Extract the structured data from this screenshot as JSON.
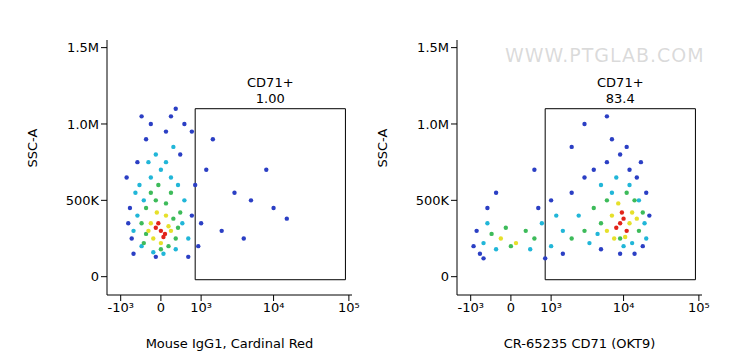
{
  "watermark": "WWW.PTGLAB.COM",
  "chart_data": [
    {
      "type": "scatter",
      "x_label": "Mouse IgG1, Cardinal Red",
      "y_label": "SSC-A",
      "xlim": [
        -1600,
        110000
      ],
      "ylim": [
        -120000,
        1550000
      ],
      "xticks": [
        {
          "value": -1000,
          "label": "-10³"
        },
        0,
        {
          "value": 1000,
          "label": "10³"
        },
        {
          "value": 10000,
          "label": "10⁴"
        },
        {
          "value": 100000,
          "label": "10⁵"
        }
      ],
      "yticks": [
        0,
        {
          "value": 500000,
          "label": "500K"
        },
        {
          "value": 1000000,
          "label": "1.0M"
        },
        {
          "value": 1500000,
          "label": "1.5M"
        }
      ],
      "gate": {
        "label": "CD71+",
        "percent": 1.0,
        "percent_label": "1.00",
        "x": [
          800,
          90000
        ],
        "y": [
          -20000,
          1100000
        ]
      },
      "series": [
        {
          "color": "#2b3fc4",
          "x": [
            -700,
            -650,
            700,
            800,
            -500,
            -300,
            100,
            400,
            1200,
            2000,
            3000,
            5000,
            1500,
            -200,
            300,
            -600,
            600,
            900,
            -800,
            4000,
            10000,
            15000,
            -400,
            700,
            200,
            8000,
            -100,
            1000,
            -750,
            500
          ],
          "values": [
            450000,
            250000,
            400000,
            600000,
            750000,
            900000,
            950000,
            800000,
            700000,
            300000,
            550000,
            500000,
            900000,
            1000000,
            1100000,
            150000,
            130000,
            200000,
            650000,
            250000,
            450000,
            380000,
            1050000,
            950000,
            1050000,
            700000,
            130000,
            350000,
            350000,
            1000000
          ]
        },
        {
          "color": "#21b6d8",
          "x": [
            -450,
            -200,
            0,
            200,
            -500,
            450,
            -400,
            300,
            -150,
            100,
            -350,
            500,
            -600,
            -250,
            50,
            350,
            -100,
            250,
            -550,
            600
          ],
          "values": [
            600000,
            650000,
            700000,
            650000,
            400000,
            350000,
            200000,
            180000,
            160000,
            750000,
            500000,
            500000,
            300000,
            750000,
            150000,
            600000,
            800000,
            850000,
            550000,
            250000
          ]
        },
        {
          "color": "#3dbb5a",
          "x": [
            -300,
            250,
            -350,
            300,
            -100,
            100,
            0,
            -400,
            350,
            -200,
            150,
            -50,
            200,
            -300,
            400
          ],
          "values": [
            450000,
            380000,
            220000,
            250000,
            500000,
            480000,
            180000,
            350000,
            320000,
            550000,
            200000,
            600000,
            550000,
            280000,
            420000
          ]
        },
        {
          "color": "#e6e02a",
          "x": [
            -200,
            150,
            -150,
            100,
            0,
            -250,
            200,
            -80
          ],
          "values": [
            350000,
            330000,
            250000,
            400000,
            220000,
            300000,
            300000,
            420000
          ]
        },
        {
          "color": "#e2231a",
          "x": [
            0,
            -100,
            80,
            -50,
            50
          ],
          "values": [
            300000,
            320000,
            280000,
            350000,
            260000
          ]
        }
      ]
    },
    {
      "type": "scatter",
      "x_label": "CR-65235 CD71 (OKT9)",
      "y_label": "SSC-A",
      "xlim": [
        -1600,
        110000
      ],
      "ylim": [
        -120000,
        1550000
      ],
      "xticks": [
        {
          "value": -1000,
          "label": "-10³"
        },
        0,
        {
          "value": 1000,
          "label": "10³"
        },
        {
          "value": 10000,
          "label": "10⁴"
        },
        {
          "value": 100000,
          "label": "10⁵"
        }
      ],
      "yticks": [
        0,
        {
          "value": 500000,
          "label": "500K"
        },
        {
          "value": 1000000,
          "label": "1.0M"
        },
        {
          "value": 1500000,
          "label": "1.5M"
        }
      ],
      "gate": {
        "label": "CD71+",
        "percent": 83.4,
        "percent_label": "83.4",
        "x": [
          800,
          90000
        ],
        "y": [
          -20000,
          1100000
        ]
      },
      "series": [
        {
          "color": "#2b3fc4",
          "x": [
            -900,
            -800,
            -700,
            1000,
            2000,
            3000,
            4000,
            6000,
            9000,
            12000,
            15000,
            20000,
            22000,
            -500,
            600,
            1500,
            5000,
            18000,
            3000,
            7000,
            11000,
            500,
            2000,
            -300,
            14000,
            -600,
            800,
            9000,
            17000,
            6000
          ],
          "values": [
            200000,
            300000,
            150000,
            500000,
            550000,
            650000,
            700000,
            750000,
            800000,
            700000,
            650000,
            550000,
            400000,
            450000,
            450000,
            150000,
            180000,
            200000,
            1000000,
            900000,
            850000,
            700000,
            850000,
            550000,
            150000,
            120000,
            120000,
            150000,
            750000,
            1050000
          ]
        },
        {
          "color": "#21b6d8",
          "x": [
            -600,
            700,
            -300,
            1000,
            1500,
            2500,
            3500,
            5000,
            7000,
            12000,
            16000,
            19000,
            20000,
            13000,
            -500,
            400,
            1200,
            8000,
            10000,
            4500
          ],
          "values": [
            220000,
            350000,
            180000,
            200000,
            300000,
            400000,
            220000,
            600000,
            550000,
            600000,
            500000,
            350000,
            250000,
            220000,
            350000,
            180000,
            400000,
            650000,
            200000,
            280000
          ]
        },
        {
          "color": "#3dbb5a",
          "x": [
            5000,
            4000,
            14000,
            16000,
            11000,
            6000,
            -400,
            300,
            0,
            500,
            3000,
            2000,
            18000,
            9000,
            -100
          ],
          "values": [
            350000,
            450000,
            500000,
            300000,
            550000,
            500000,
            280000,
            300000,
            200000,
            250000,
            300000,
            250000,
            420000,
            250000,
            320000
          ]
        },
        {
          "color": "#e6e02a",
          "x": [
            7000,
            12000,
            6000,
            13000,
            8500,
            10500,
            -200,
            100,
            15000,
            7500
          ],
          "values": [
            400000,
            350000,
            300000,
            420000,
            480000,
            260000,
            250000,
            220000,
            380000,
            250000
          ]
        },
        {
          "color": "#e2231a",
          "x": [
            9000,
            10000,
            8000,
            11000,
            9500
          ],
          "values": [
            350000,
            380000,
            320000,
            300000,
            420000
          ]
        }
      ]
    }
  ]
}
